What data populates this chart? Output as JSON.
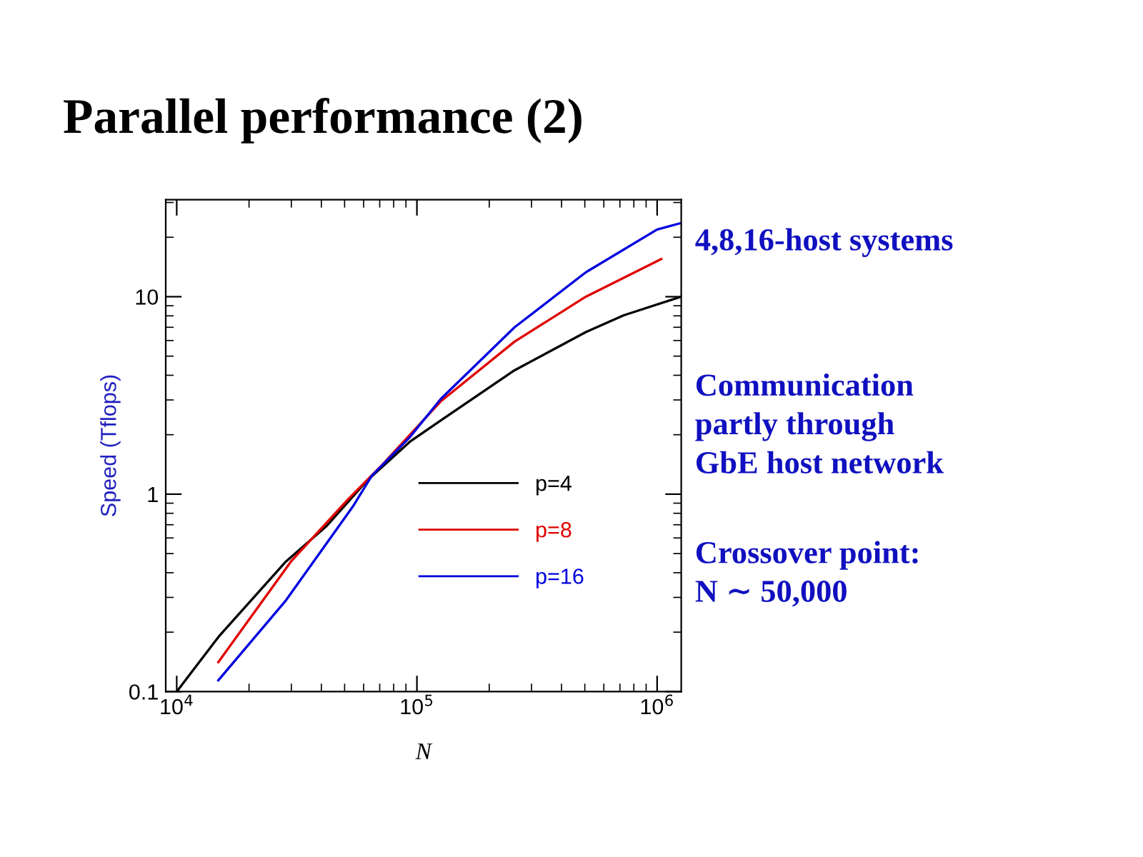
{
  "chart_data": {
    "type": "line",
    "title": "Parallel performance (2)",
    "xlabel": "N",
    "ylabel": "Speed (Tflops)",
    "log": "xy",
    "xlim": [
      9000,
      1260000
    ],
    "ylim": [
      0.1,
      31
    ],
    "xticks": [
      {
        "value": 10000,
        "label": "10$^{4}$"
      },
      {
        "value": 100000,
        "label": "10$^{5}$"
      },
      {
        "value": 1000000,
        "label": "10$^{6}$"
      }
    ],
    "yticks": [
      0.1,
      1,
      10
    ],
    "grid": false,
    "legend": "bottom right",
    "marker": "none",
    "line_style": "solid",
    "series": [
      {
        "name": "p=4",
        "color": "#000000",
        "x": [
          10000,
          15070,
          28500,
          42100,
          62000,
          93300,
          125500,
          255000,
          505000,
          726000,
          1256000
        ],
        "values": [
          0.1,
          0.192,
          0.456,
          0.69,
          1.17,
          1.84,
          2.36,
          4.24,
          6.62,
          8.05,
          10.0
        ]
      },
      {
        "name": "p=8",
        "color": "#e00000",
        "x": [
          14900,
          29900,
          51600,
          71000,
          125600,
          255000,
          505000,
          1040000
        ],
        "values": [
          0.141,
          0.456,
          0.94,
          1.39,
          2.95,
          5.92,
          10.0,
          15.5
        ]
      },
      {
        "name": "p=16",
        "color": "#0000e0",
        "x": [
          14900,
          28500,
          54100,
          64900,
          93300,
          125600,
          255000,
          505000,
          1000000,
          1256000
        ],
        "values": [
          0.114,
          0.29,
          0.865,
          1.24,
          1.94,
          3.03,
          7.0,
          13.3,
          21.9,
          23.6
        ]
      }
    ],
    "annotations": [
      "4,8,16-host systems",
      "Communication\npartly through\nGbE host network",
      "Crossover point:\nN ∼ 50,000"
    ]
  }
}
